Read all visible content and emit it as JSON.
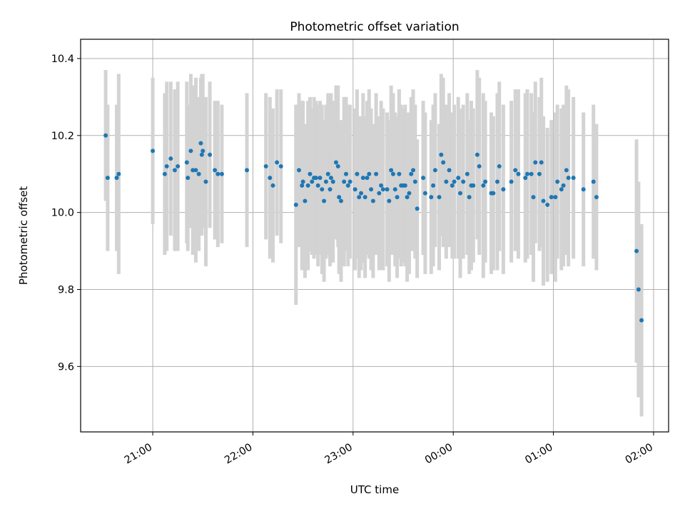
{
  "chart_data": {
    "type": "scatter",
    "title": "Photometric offset variation",
    "xlabel": "UTC time",
    "ylabel": "Photometric offset",
    "x_unit": "hours",
    "x_tick_values": [
      21,
      22,
      23,
      24,
      25,
      26
    ],
    "x_tick_labels": [
      "21:00",
      "22:00",
      "23:00",
      "00:00",
      "01:00",
      "02:00"
    ],
    "y_ticks": [
      9.6,
      9.8,
      10.0,
      10.2,
      10.4
    ],
    "y_tick_labels": [
      "9.6",
      "9.8",
      "10.0",
      "10.2",
      "10.4"
    ],
    "xlim": [
      20.28,
      26.15
    ],
    "ylim": [
      9.43,
      10.45
    ],
    "grid": true,
    "colors": {
      "point": "#1f77b4",
      "errorbar": "#d3d3d3",
      "grid": "#b0b0b0"
    },
    "series": [
      {
        "points": [
          [
            20.53,
            10.2,
            0.17
          ],
          [
            20.55,
            10.09,
            0.19
          ],
          [
            20.64,
            10.09,
            0.19
          ],
          [
            20.66,
            10.1,
            0.26
          ],
          [
            21.0,
            10.16,
            0.19
          ],
          [
            21.12,
            10.1,
            0.21
          ],
          [
            21.14,
            10.12,
            0.22
          ],
          [
            21.18,
            10.14,
            0.2
          ],
          [
            21.22,
            10.11,
            0.21
          ],
          [
            21.25,
            10.12,
            0.22
          ],
          [
            21.34,
            10.13,
            0.21
          ],
          [
            21.35,
            10.09,
            0.19
          ],
          [
            21.38,
            10.16,
            0.2
          ],
          [
            21.4,
            10.11,
            0.22
          ],
          [
            21.43,
            10.11,
            0.24
          ],
          [
            21.46,
            10.1,
            0.2
          ],
          [
            21.48,
            10.18,
            0.17
          ],
          [
            21.49,
            10.15,
            0.21
          ],
          [
            21.5,
            10.16,
            0.2
          ],
          [
            21.53,
            10.08,
            0.22
          ],
          [
            21.57,
            10.15,
            0.19
          ],
          [
            21.62,
            10.11,
            0.18
          ],
          [
            21.65,
            10.1,
            0.19
          ],
          [
            21.69,
            10.1,
            0.18
          ],
          [
            21.94,
            10.11,
            0.2
          ],
          [
            22.13,
            10.12,
            0.19
          ],
          [
            22.17,
            10.09,
            0.21
          ],
          [
            22.2,
            10.07,
            0.2
          ],
          [
            22.24,
            10.13,
            0.19
          ],
          [
            22.28,
            10.12,
            0.2
          ],
          [
            22.43,
            10.02,
            0.26
          ],
          [
            22.46,
            10.11,
            0.2
          ],
          [
            22.49,
            10.07,
            0.22
          ],
          [
            22.5,
            10.08,
            0.21
          ],
          [
            22.52,
            10.03,
            0.2
          ],
          [
            22.55,
            10.07,
            0.22
          ],
          [
            22.57,
            10.1,
            0.2
          ],
          [
            22.59,
            10.08,
            0.19
          ],
          [
            22.61,
            10.09,
            0.21
          ],
          [
            22.63,
            10.09,
            0.2
          ],
          [
            22.65,
            10.07,
            0.21
          ],
          [
            22.67,
            10.09,
            0.2
          ],
          [
            22.69,
            10.06,
            0.22
          ],
          [
            22.71,
            10.03,
            0.21
          ],
          [
            22.73,
            10.08,
            0.2
          ],
          [
            22.75,
            10.1,
            0.21
          ],
          [
            22.77,
            10.06,
            0.2
          ],
          [
            22.78,
            10.09,
            0.22
          ],
          [
            22.8,
            10.08,
            0.21
          ],
          [
            22.83,
            10.13,
            0.2
          ],
          [
            22.85,
            10.12,
            0.21
          ],
          [
            22.86,
            10.04,
            0.2
          ],
          [
            22.88,
            10.03,
            0.21
          ],
          [
            22.91,
            10.08,
            0.22
          ],
          [
            22.93,
            10.1,
            0.2
          ],
          [
            22.95,
            10.07,
            0.21
          ],
          [
            22.97,
            10.08,
            0.2
          ],
          [
            23.02,
            10.06,
            0.21
          ],
          [
            23.04,
            10.1,
            0.22
          ],
          [
            23.06,
            10.04,
            0.21
          ],
          [
            23.08,
            10.05,
            0.2
          ],
          [
            23.1,
            10.09,
            0.22
          ],
          [
            23.12,
            10.04,
            0.21
          ],
          [
            23.14,
            10.09,
            0.2
          ],
          [
            23.16,
            10.1,
            0.22
          ],
          [
            23.18,
            10.06,
            0.21
          ],
          [
            23.2,
            10.03,
            0.2
          ],
          [
            23.23,
            10.1,
            0.21
          ],
          [
            23.26,
            10.05,
            0.2
          ],
          [
            23.28,
            10.07,
            0.22
          ],
          [
            23.3,
            10.06,
            0.21
          ],
          [
            23.34,
            10.06,
            0.2
          ],
          [
            23.36,
            10.03,
            0.21
          ],
          [
            23.38,
            10.11,
            0.22
          ],
          [
            23.4,
            10.1,
            0.21
          ],
          [
            23.42,
            10.06,
            0.2
          ],
          [
            23.44,
            10.04,
            0.21
          ],
          [
            23.46,
            10.1,
            0.22
          ],
          [
            23.48,
            10.07,
            0.21
          ],
          [
            23.5,
            10.07,
            0.2
          ],
          [
            23.52,
            10.07,
            0.21
          ],
          [
            23.54,
            10.04,
            0.22
          ],
          [
            23.56,
            10.05,
            0.21
          ],
          [
            23.58,
            10.1,
            0.2
          ],
          [
            23.6,
            10.11,
            0.21
          ],
          [
            23.62,
            10.08,
            0.2
          ],
          [
            23.64,
            10.01,
            0.18
          ],
          [
            23.7,
            10.09,
            0.2
          ],
          [
            23.72,
            10.05,
            0.21
          ],
          [
            23.78,
            10.04,
            0.2
          ],
          [
            23.8,
            10.07,
            0.21
          ],
          [
            23.82,
            10.11,
            0.2
          ],
          [
            23.86,
            10.04,
            0.19
          ],
          [
            23.88,
            10.15,
            0.21
          ],
          [
            23.9,
            10.13,
            0.22
          ],
          [
            23.93,
            10.08,
            0.2
          ],
          [
            23.96,
            10.11,
            0.2
          ],
          [
            23.99,
            10.07,
            0.19
          ],
          [
            24.01,
            10.08,
            0.2
          ],
          [
            24.05,
            10.09,
            0.21
          ],
          [
            24.07,
            10.05,
            0.22
          ],
          [
            24.1,
            10.08,
            0.2
          ],
          [
            24.14,
            10.1,
            0.21
          ],
          [
            24.16,
            10.04,
            0.2
          ],
          [
            24.18,
            10.07,
            0.22
          ],
          [
            24.2,
            10.07,
            0.2
          ],
          [
            24.24,
            10.15,
            0.22
          ],
          [
            24.26,
            10.12,
            0.23
          ],
          [
            24.3,
            10.07,
            0.24
          ],
          [
            24.32,
            10.08,
            0.21
          ],
          [
            24.38,
            10.05,
            0.21
          ],
          [
            24.4,
            10.05,
            0.2
          ],
          [
            24.44,
            10.08,
            0.23
          ],
          [
            24.46,
            10.12,
            0.22
          ],
          [
            24.5,
            10.06,
            0.22
          ],
          [
            24.58,
            10.08,
            0.21
          ],
          [
            24.62,
            10.11,
            0.21
          ],
          [
            24.65,
            10.1,
            0.22
          ],
          [
            24.72,
            10.09,
            0.22
          ],
          [
            24.74,
            10.1,
            0.22
          ],
          [
            24.78,
            10.1,
            0.21
          ],
          [
            24.8,
            10.04,
            0.22
          ],
          [
            24.82,
            10.13,
            0.21
          ],
          [
            24.86,
            10.1,
            0.2
          ],
          [
            24.88,
            10.13,
            0.22
          ],
          [
            24.9,
            10.03,
            0.22
          ],
          [
            24.94,
            10.02,
            0.2
          ],
          [
            24.98,
            10.04,
            0.2
          ],
          [
            25.02,
            10.04,
            0.22
          ],
          [
            25.04,
            10.08,
            0.2
          ],
          [
            25.08,
            10.06,
            0.21
          ],
          [
            25.1,
            10.07,
            0.21
          ],
          [
            25.13,
            10.11,
            0.22
          ],
          [
            25.15,
            10.09,
            0.23
          ],
          [
            25.2,
            10.09,
            0.21
          ],
          [
            25.3,
            10.06,
            0.2
          ],
          [
            25.4,
            10.08,
            0.2
          ],
          [
            25.43,
            10.04,
            0.19
          ],
          [
            25.83,
            9.9,
            0.29
          ],
          [
            25.85,
            9.8,
            0.28
          ],
          [
            25.88,
            9.72,
            0.25
          ]
        ]
      }
    ]
  }
}
